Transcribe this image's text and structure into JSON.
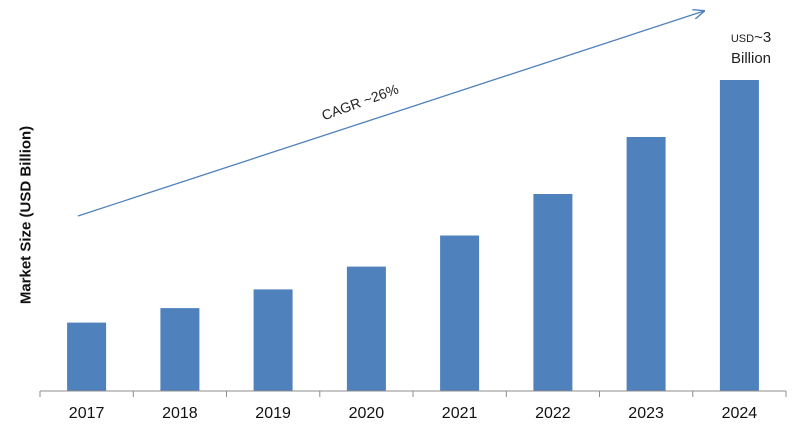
{
  "chart_data": {
    "type": "bar",
    "categories": [
      "2017",
      "2018",
      "2019",
      "2020",
      "2021",
      "2022",
      "2023",
      "2024"
    ],
    "values": [
      0.66,
      0.8,
      0.98,
      1.2,
      1.5,
      1.9,
      2.45,
      3.0
    ],
    "ylabel": "Market Size (USD Billion)",
    "xlabel": "",
    "ylim": [
      0,
      3.2
    ],
    "grid": false,
    "bar_color": "#4f81bd",
    "trend_line_color": "#4f81bd",
    "trend_label": "CAGR ~26%",
    "end_annotation": {
      "prefix": "USD",
      "value": "~3",
      "unit": "Billion"
    }
  }
}
